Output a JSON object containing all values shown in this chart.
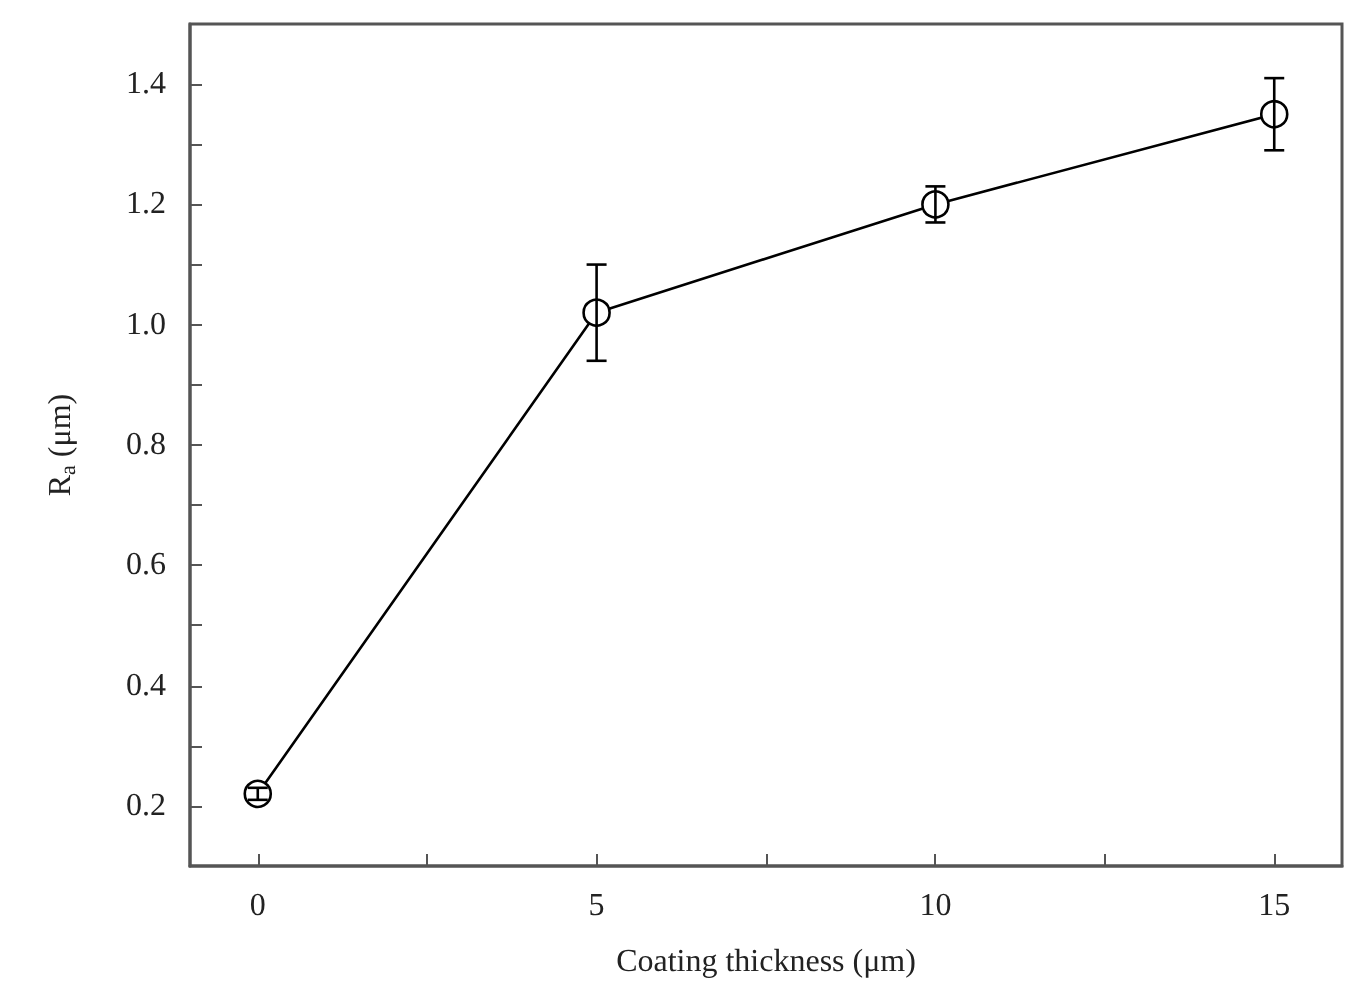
{
  "chart_data": {
    "type": "line",
    "xlabel": "Coating thickness (μm)",
    "ylabel": "R$_{a}$ (μm)",
    "x": [
      0,
      5,
      10,
      15
    ],
    "series": [
      {
        "color": "#000000",
        "values": [
          0.22,
          1.02,
          1.2,
          1.35
        ],
        "errors": [
          0.01,
          [
            0.94,
            1.1
          ],
          0.03,
          0.06
        ]
      }
    ],
    "xlim": [
      -1,
      16
    ],
    "xticks": [
      0,
      {
        "value": 2.5,
        "label": null
      },
      5,
      {
        "value": 7.5,
        "label": null
      },
      10,
      {
        "value": 12.5,
        "label": null
      },
      15
    ],
    "ylim": [
      0.1,
      1.5
    ],
    "yticks": [
      0.2,
      {
        "value": 0.3,
        "label": null
      },
      0.4,
      {
        "value": 0.5,
        "label": null
      },
      0.6,
      {
        "value": 0.7,
        "label": null
      },
      0.8,
      {
        "value": 0.9,
        "label": null
      },
      {
        "value": 1,
        "label": "1.0"
      },
      {
        "value": 1.1,
        "label": null
      },
      1.2,
      {
        "value": 1.3,
        "label": null
      },
      1.4
    ],
    "marker": "circle",
    "line_style": "solid",
    "grid": false
  }
}
